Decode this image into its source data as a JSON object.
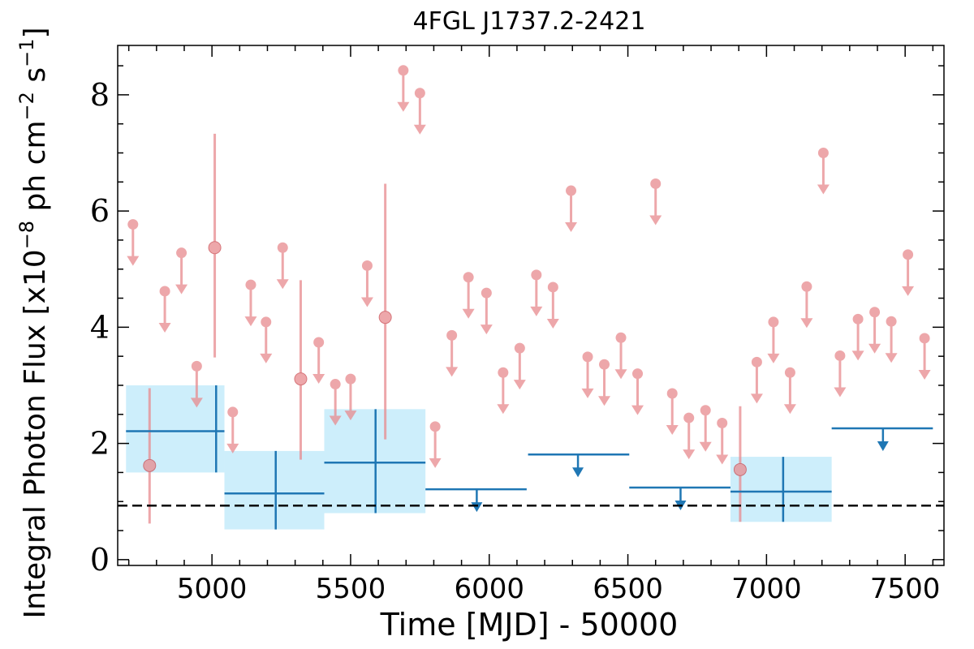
{
  "chart_data": {
    "type": "scatter",
    "title": "4FGL J1737.2-2421",
    "xlabel": "Time [MJD] - 50000",
    "ylabel": "Integral Photon Flux [x10",
    "ylabel_exp1": "−8",
    "ylabel_mid": " ph cm",
    "ylabel_exp2": "−2",
    "ylabel_mid2": " s",
    "ylabel_exp3": "−1",
    "ylabel_end": "]",
    "xlim": [
      4660,
      7640
    ],
    "ylim": [
      -0.1,
      8.85
    ],
    "xticks": [
      5000,
      5500,
      6000,
      6500,
      7000,
      7500
    ],
    "xtick_labels": [
      "5000",
      "5500",
      "6000",
      "6500",
      "7000",
      "7500"
    ],
    "yticks": [
      0,
      2,
      4,
      6,
      8
    ],
    "ytick_labels": [
      "0",
      "2",
      "4",
      "6",
      "8"
    ],
    "grid": false,
    "reference_level": 0.93,
    "colors": {
      "short_bins": "#e88a8e",
      "long_bins": "#1f77b4",
      "long_bins_fill": "#cdeefb",
      "reference": "#000000"
    },
    "series": [
      {
        "kind": "short-bin-upper-limits",
        "points": [
          {
            "x": 4715,
            "y": 5.77
          },
          {
            "x": 4830,
            "y": 4.62
          },
          {
            "x": 4890,
            "y": 5.28
          },
          {
            "x": 4945,
            "y": 3.33
          },
          {
            "x": 5075,
            "y": 2.54
          },
          {
            "x": 5140,
            "y": 4.73
          },
          {
            "x": 5195,
            "y": 4.09
          },
          {
            "x": 5255,
            "y": 5.37
          },
          {
            "x": 5385,
            "y": 3.74
          },
          {
            "x": 5445,
            "y": 3.02
          },
          {
            "x": 5500,
            "y": 3.11
          },
          {
            "x": 5560,
            "y": 5.06
          },
          {
            "x": 5690,
            "y": 8.42
          },
          {
            "x": 5750,
            "y": 8.03
          },
          {
            "x": 5805,
            "y": 2.29
          },
          {
            "x": 5865,
            "y": 3.86
          },
          {
            "x": 5925,
            "y": 4.86
          },
          {
            "x": 5990,
            "y": 4.59
          },
          {
            "x": 6050,
            "y": 3.22
          },
          {
            "x": 6110,
            "y": 3.64
          },
          {
            "x": 6170,
            "y": 4.9
          },
          {
            "x": 6230,
            "y": 4.69
          },
          {
            "x": 6295,
            "y": 6.35
          },
          {
            "x": 6355,
            "y": 3.49
          },
          {
            "x": 6415,
            "y": 3.36
          },
          {
            "x": 6475,
            "y": 3.82
          },
          {
            "x": 6535,
            "y": 3.2
          },
          {
            "x": 6600,
            "y": 6.47
          },
          {
            "x": 6660,
            "y": 2.86
          },
          {
            "x": 6720,
            "y": 2.44
          },
          {
            "x": 6780,
            "y": 2.57
          },
          {
            "x": 6840,
            "y": 2.35
          },
          {
            "x": 6965,
            "y": 3.4
          },
          {
            "x": 7025,
            "y": 4.09
          },
          {
            "x": 7085,
            "y": 3.22
          },
          {
            "x": 7145,
            "y": 4.7
          },
          {
            "x": 7205,
            "y": 7.0
          },
          {
            "x": 7265,
            "y": 3.51
          },
          {
            "x": 7330,
            "y": 4.14
          },
          {
            "x": 7390,
            "y": 4.26
          },
          {
            "x": 7450,
            "y": 4.1
          },
          {
            "x": 7510,
            "y": 5.25
          },
          {
            "x": 7570,
            "y": 3.81
          }
        ]
      },
      {
        "kind": "short-bin-detections",
        "points": [
          {
            "x": 4775,
            "y": 1.62,
            "ylow": 0.62,
            "yhigh": 2.95
          },
          {
            "x": 5010,
            "y": 5.37,
            "ylow": 3.48,
            "yhigh": 7.33
          },
          {
            "x": 5320,
            "y": 3.11,
            "ylow": 1.72,
            "yhigh": 4.81
          },
          {
            "x": 5625,
            "y": 4.17,
            "ylow": 2.07,
            "yhigh": 6.47
          },
          {
            "x": 6905,
            "y": 1.55,
            "ylow": 0.65,
            "yhigh": 2.64
          }
        ]
      },
      {
        "kind": "long-bin-detections",
        "points": [
          {
            "x": 5015,
            "xlow": 4690,
            "xhigh": 5045,
            "y": 2.21,
            "ylow": 1.5,
            "yhigh": 3.0
          },
          {
            "x": 5230,
            "xlow": 5045,
            "xhigh": 5405,
            "y": 1.14,
            "ylow": 0.52,
            "yhigh": 1.87
          },
          {
            "x": 5590,
            "xlow": 5405,
            "xhigh": 5770,
            "y": 1.67,
            "ylow": 0.8,
            "yhigh": 2.59
          },
          {
            "x": 7060,
            "xlow": 6870,
            "xhigh": 7235,
            "y": 1.17,
            "ylow": 0.65,
            "yhigh": 1.77
          }
        ]
      },
      {
        "kind": "long-bin-upper-limits",
        "points": [
          {
            "x": 5955,
            "xlow": 5770,
            "xhigh": 6135,
            "y": 1.21
          },
          {
            "x": 6320,
            "xlow": 6140,
            "xhigh": 6505,
            "y": 1.81
          },
          {
            "x": 6690,
            "xlow": 6505,
            "xhigh": 6870,
            "y": 1.24
          },
          {
            "x": 7420,
            "xlow": 7235,
            "xhigh": 7600,
            "y": 2.26
          }
        ]
      }
    ]
  }
}
